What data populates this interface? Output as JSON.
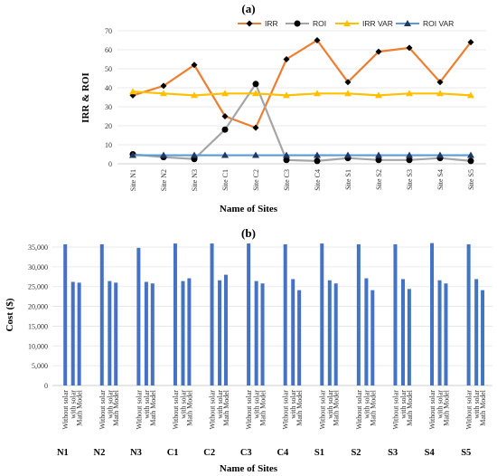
{
  "chart_data": [
    {
      "type": "line",
      "title": "(a)",
      "xlabel": "Name of Sites",
      "ylabel": "IRR & ROI",
      "ylim": [
        0,
        70
      ],
      "yticks": [
        "0",
        "10",
        "20",
        "30",
        "40",
        "50",
        "60",
        "70"
      ],
      "categories": [
        "Site N1",
        "Site N2",
        "Site N3",
        "Site C1",
        "Site C2",
        "Site C3",
        "Site C4",
        "Site S1",
        "Site S2",
        "Site S3",
        "Site S4",
        "Site S5"
      ],
      "legend_position": "top",
      "grid": "horizontal",
      "series": [
        {
          "name": "IRR",
          "color": "#ED7D31",
          "marker": "diamond",
          "values": [
            36,
            41,
            52,
            25,
            19,
            55,
            65,
            43,
            59,
            61,
            43,
            64
          ]
        },
        {
          "name": "ROI",
          "color": "#A5A5A5",
          "marker": "circle",
          "markerColor": "#000000",
          "values": [
            5,
            3.5,
            2.5,
            18,
            42,
            2,
            1.5,
            3,
            2,
            2,
            3,
            1.5
          ]
        },
        {
          "name": "IRR VAR",
          "color": "#FFC000",
          "marker": "triangle",
          "markerColor": "#FFC000",
          "values": [
            38,
            37,
            36,
            37,
            37,
            36,
            37,
            37,
            36,
            37,
            37,
            36
          ]
        },
        {
          "name": "ROI VAR",
          "color": "#5B9BD5",
          "marker": "triangle",
          "markerColor": "#1F3864",
          "values": [
            4.5,
            4.5,
            4.5,
            4.5,
            4.5,
            4.5,
            4.5,
            4.5,
            4.5,
            4.5,
            4.5,
            4.5
          ]
        }
      ]
    },
    {
      "type": "bar",
      "title": "(b)",
      "xlabel": "Name of Sites",
      "ylabel": "Cost ($)",
      "ylim": [
        0,
        35000
      ],
      "yticks": [
        "0",
        "5,000",
        "10,000",
        "15,000",
        "20,000",
        "25,000",
        "30,000",
        "35,000"
      ],
      "categories": [
        "N1",
        "N2",
        "N3",
        "C1",
        "C2",
        "C3",
        "C4",
        "S1",
        "S2",
        "S3",
        "S4",
        "S5"
      ],
      "bar_labels": [
        "Without solar",
        "with solar",
        "Math Model"
      ],
      "color": "#4472C4",
      "grid": "horizontal",
      "series": [
        {
          "name": "Without solar",
          "values": [
            35700,
            35700,
            34800,
            35900,
            35900,
            35900,
            35700,
            35900,
            35700,
            35700,
            36000,
            35700
          ]
        },
        {
          "name": "with solar",
          "values": [
            26200,
            26400,
            26200,
            26400,
            26600,
            26400,
            26900,
            26600,
            27100,
            26900,
            26600,
            26900
          ]
        },
        {
          "name": "Math Model",
          "values": [
            26000,
            26000,
            25800,
            27100,
            28000,
            25800,
            24100,
            25800,
            24100,
            24400,
            25800,
            24100
          ]
        }
      ]
    }
  ]
}
